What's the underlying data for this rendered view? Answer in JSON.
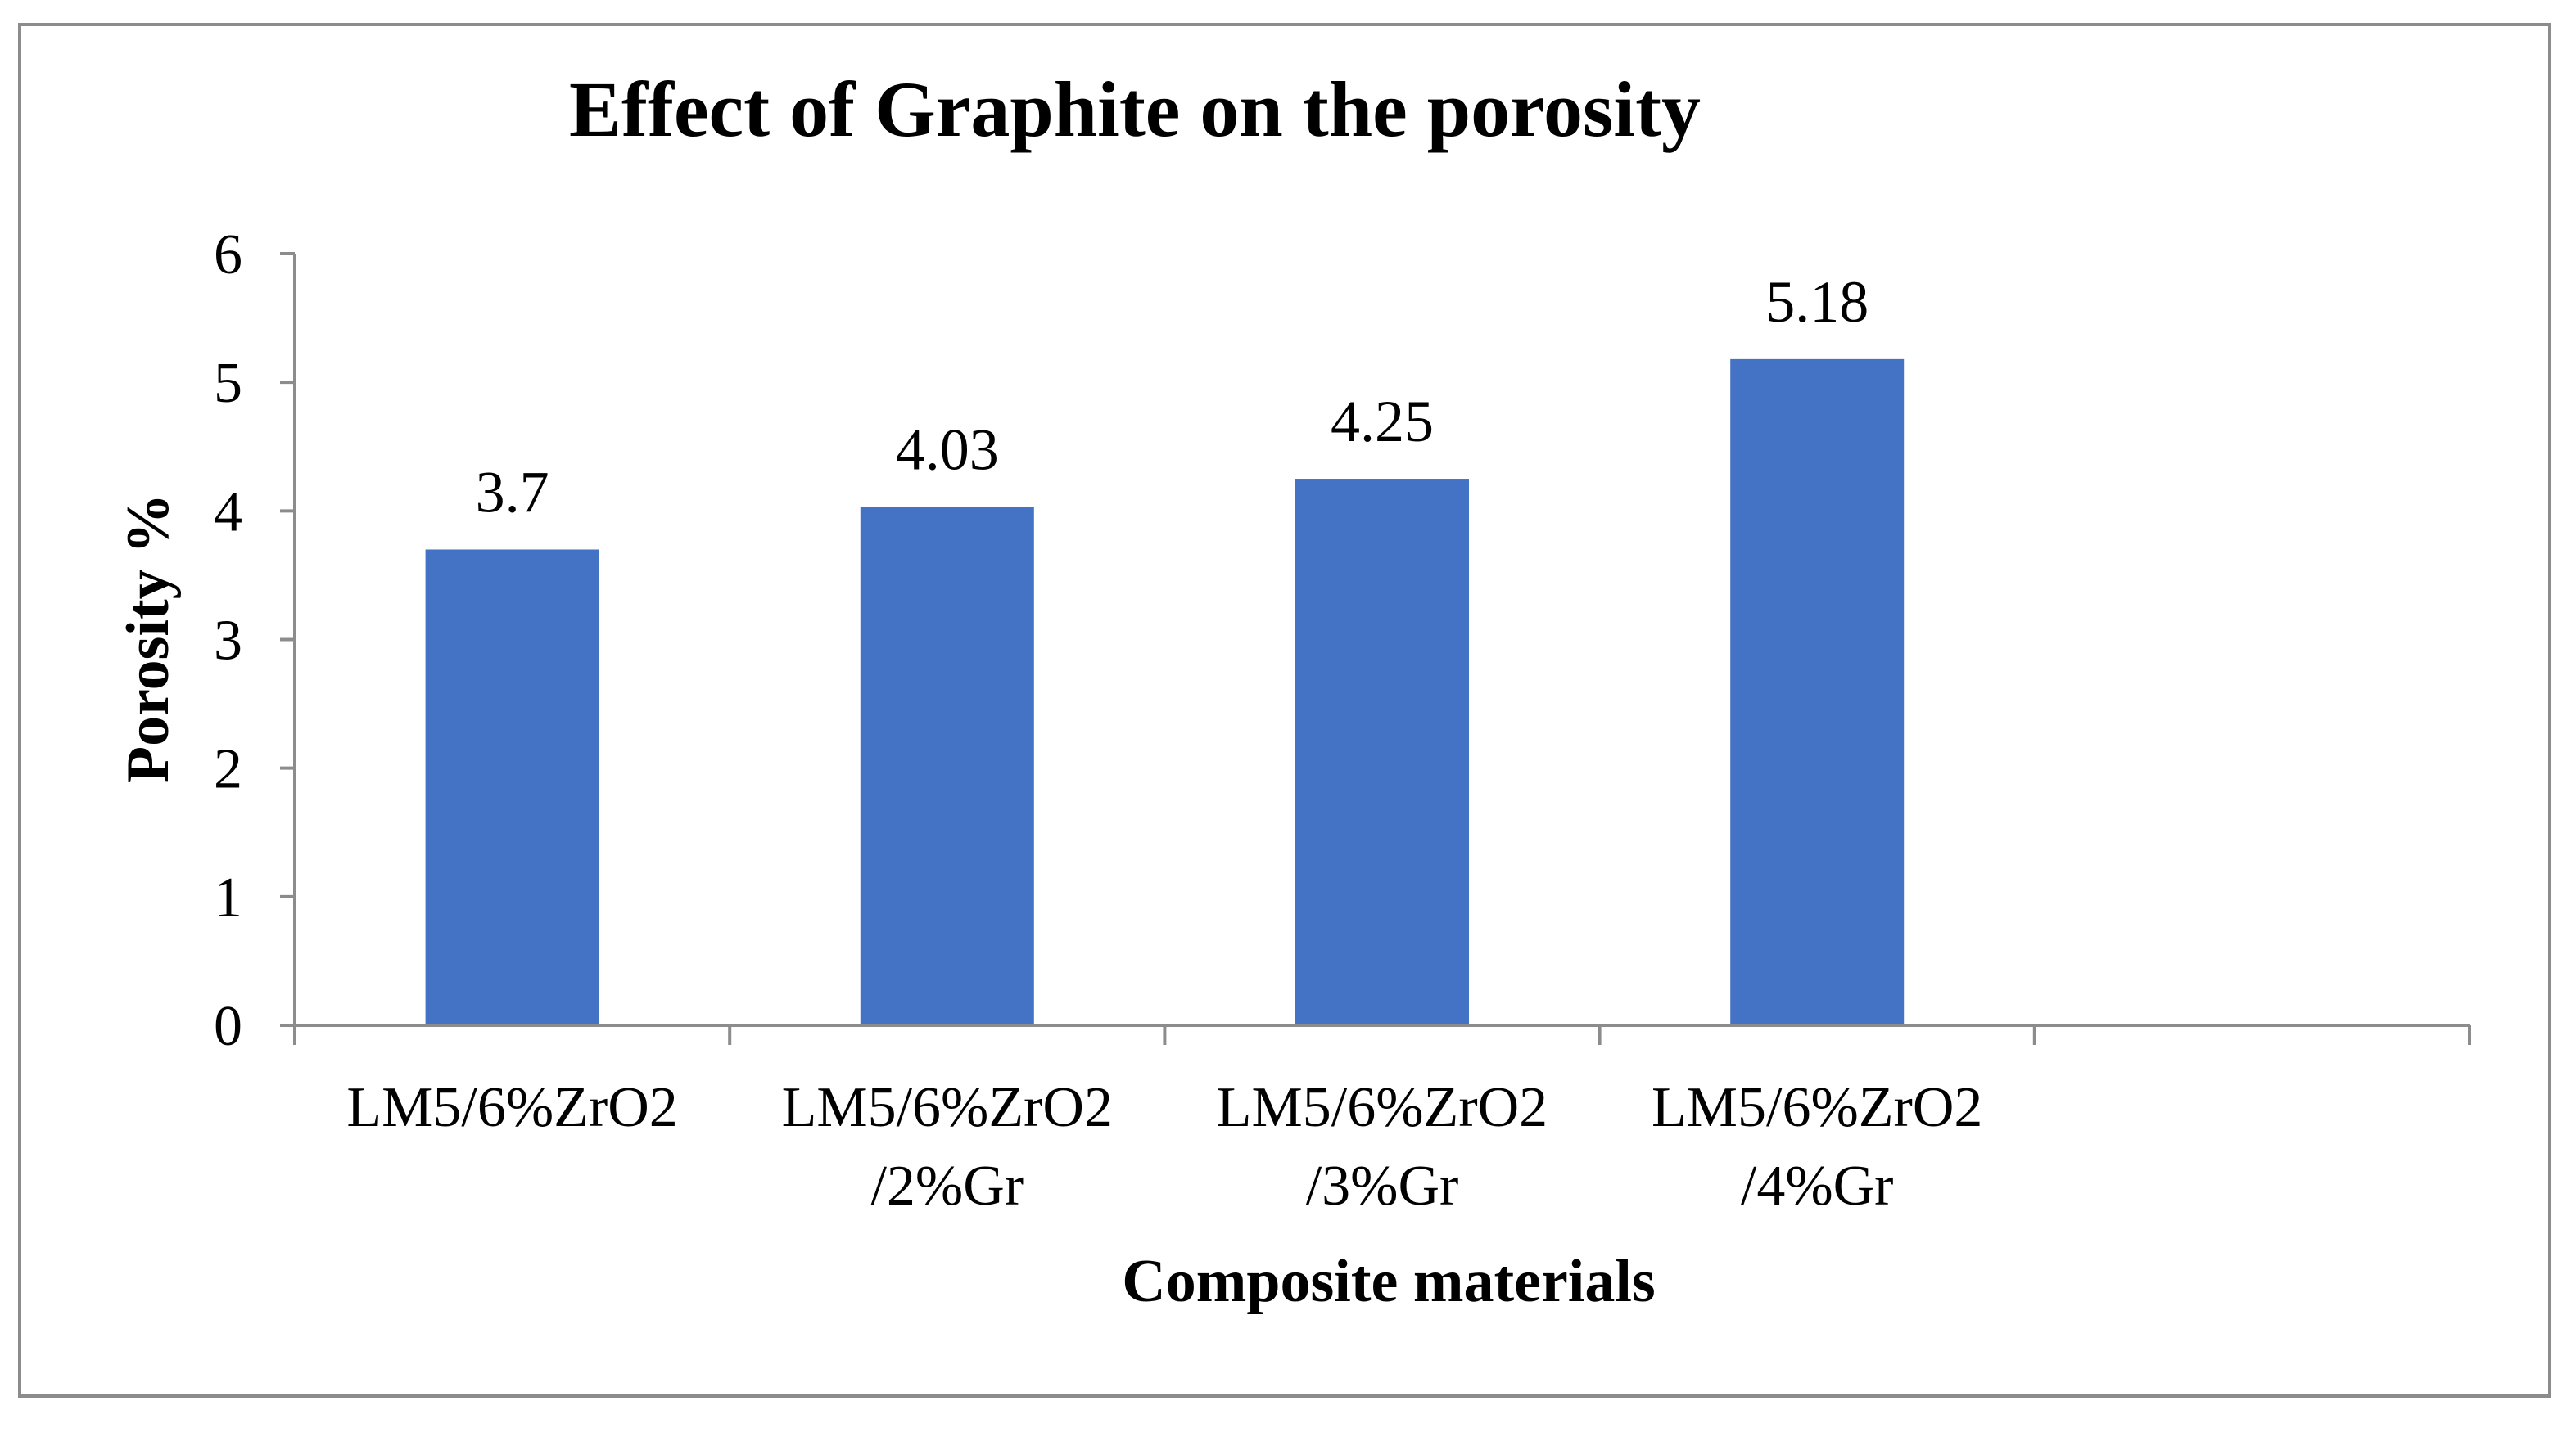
{
  "chart_data": {
    "type": "bar",
    "title": "Effect of Graphite on the porosity",
    "xlabel": "Composite materials",
    "ylabel": "Porosity %",
    "ylim": [
      0,
      6
    ],
    "yticks": [
      "0",
      "1",
      "2",
      "3",
      "4",
      "5",
      "6"
    ],
    "categories": [
      [
        "LM5/6%ZrO2"
      ],
      [
        "LM5/6%ZrO2",
        "/2%Gr"
      ],
      [
        "LM5/6%ZrO2",
        "/3%Gr"
      ],
      [
        "LM5/6%ZrO2",
        "/4%Gr"
      ]
    ],
    "values": [
      3.7,
      4.03,
      4.25,
      5.18
    ],
    "data_labels": [
      "3.7",
      "4.03",
      "4.25",
      "5.18"
    ],
    "slots": 5,
    "bar_color": "#4472C4",
    "axis_color": "#8c8c8c",
    "grid": false,
    "legend": "none"
  }
}
